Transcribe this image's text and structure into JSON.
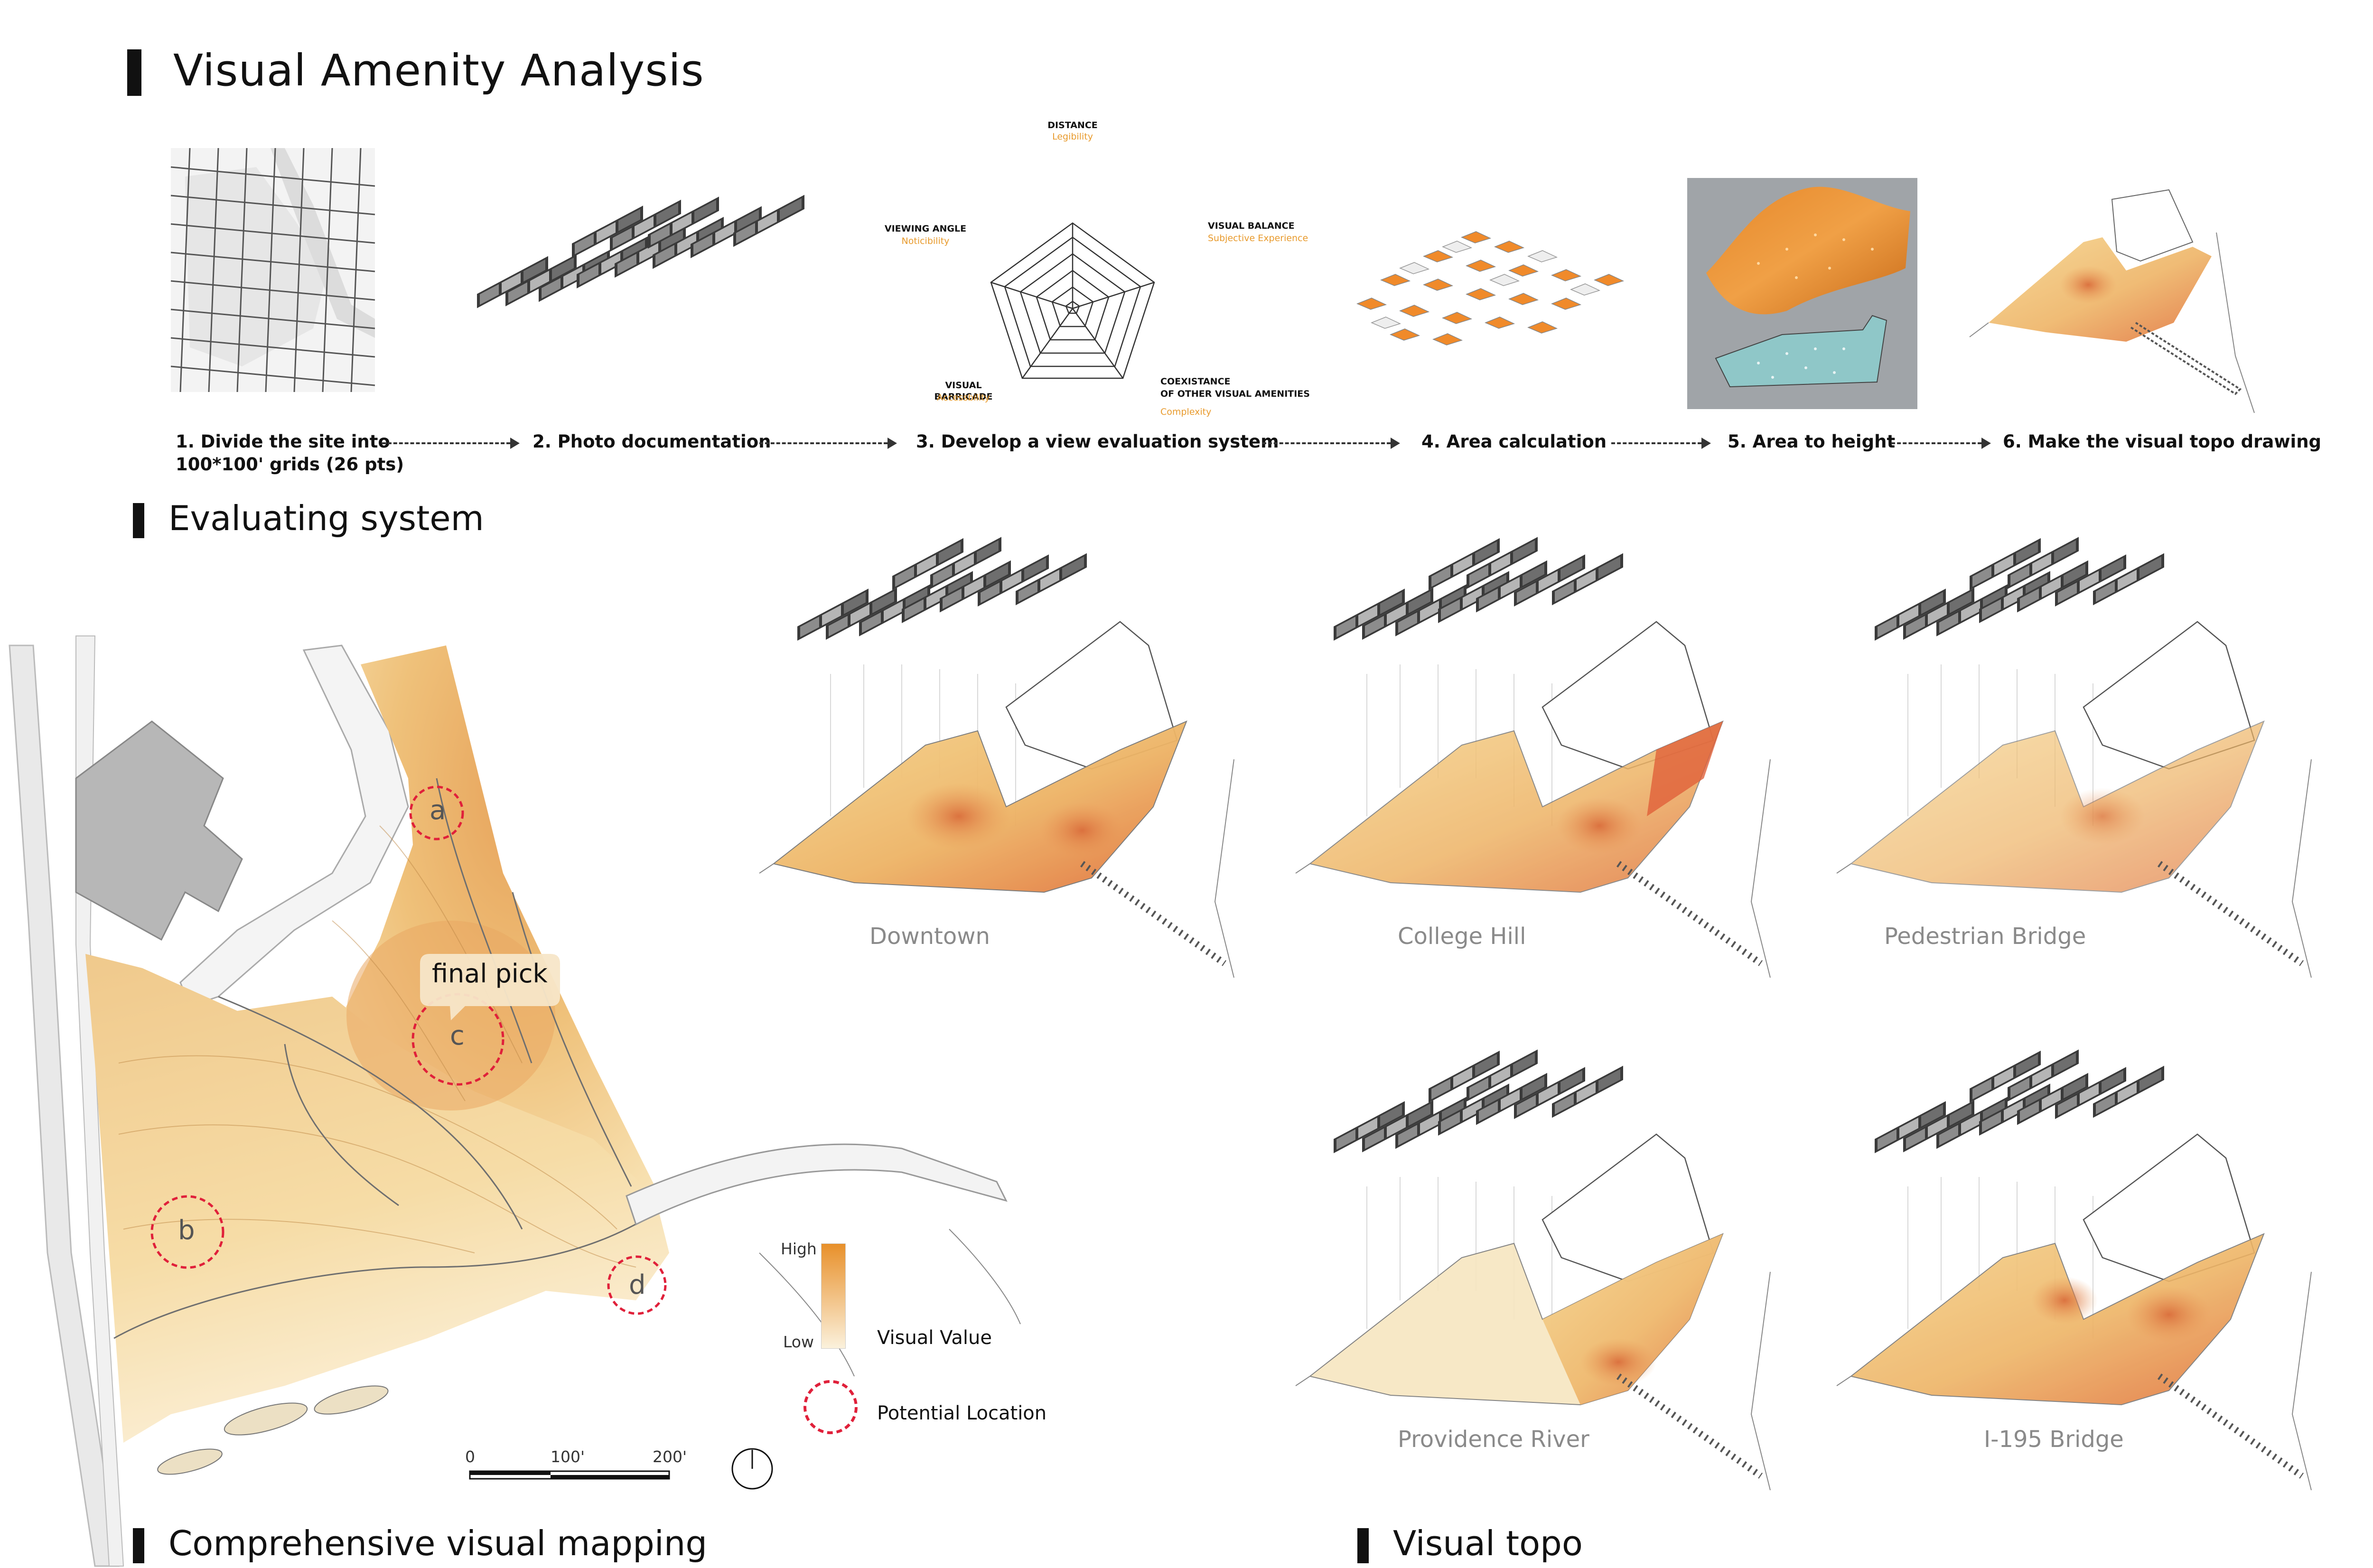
{
  "title": "Visual Amenity Analysis",
  "steps": [
    {
      "label": "1. Divide the site into",
      "label2": "100*100' grids (26 pts)"
    },
    {
      "label": "2. Photo documentation"
    },
    {
      "label": "3. Develop a view evaluation system"
    },
    {
      "label": "4. Area calculation"
    },
    {
      "label": "5. Area to height"
    },
    {
      "label": "6. Make the visual topo drawing"
    }
  ],
  "radar": {
    "top": {
      "label": "DISTANCE",
      "sub": "Legibility"
    },
    "right": {
      "label": "VISUAL BALANCE",
      "sub": "Subjective Experience"
    },
    "left": {
      "label": "VIEWING ANGLE",
      "sub": "Noticibility"
    },
    "bottom_left": {
      "label": "VISUAL BARRICADE",
      "sub": "Accessbility"
    },
    "bottom_right": {
      "label": "COEXISTANCE",
      "label2": "OF OTHER VISUAL AMENITIES",
      "sub": "Complexity"
    }
  },
  "sections": {
    "evaluating": "Evaluating system",
    "mapping": "Comprehensive visual mapping",
    "topo": "Visual topo"
  },
  "map": {
    "points": [
      "a",
      "b",
      "c",
      "d"
    ],
    "final_pick": "final pick",
    "scale": [
      "0",
      "100'",
      "200'"
    ]
  },
  "legend": {
    "high": "High",
    "low": "Low",
    "value_label": "Visual Value",
    "location_label": "Potential Location"
  },
  "views": [
    "Downtown",
    "College Hill",
    "Pedestrian Bridge",
    "Providence River",
    "I-195 Bridge"
  ],
  "colors": {
    "accent": "#e8902a",
    "marker": "#e0203a",
    "title_bar": "#111111"
  }
}
